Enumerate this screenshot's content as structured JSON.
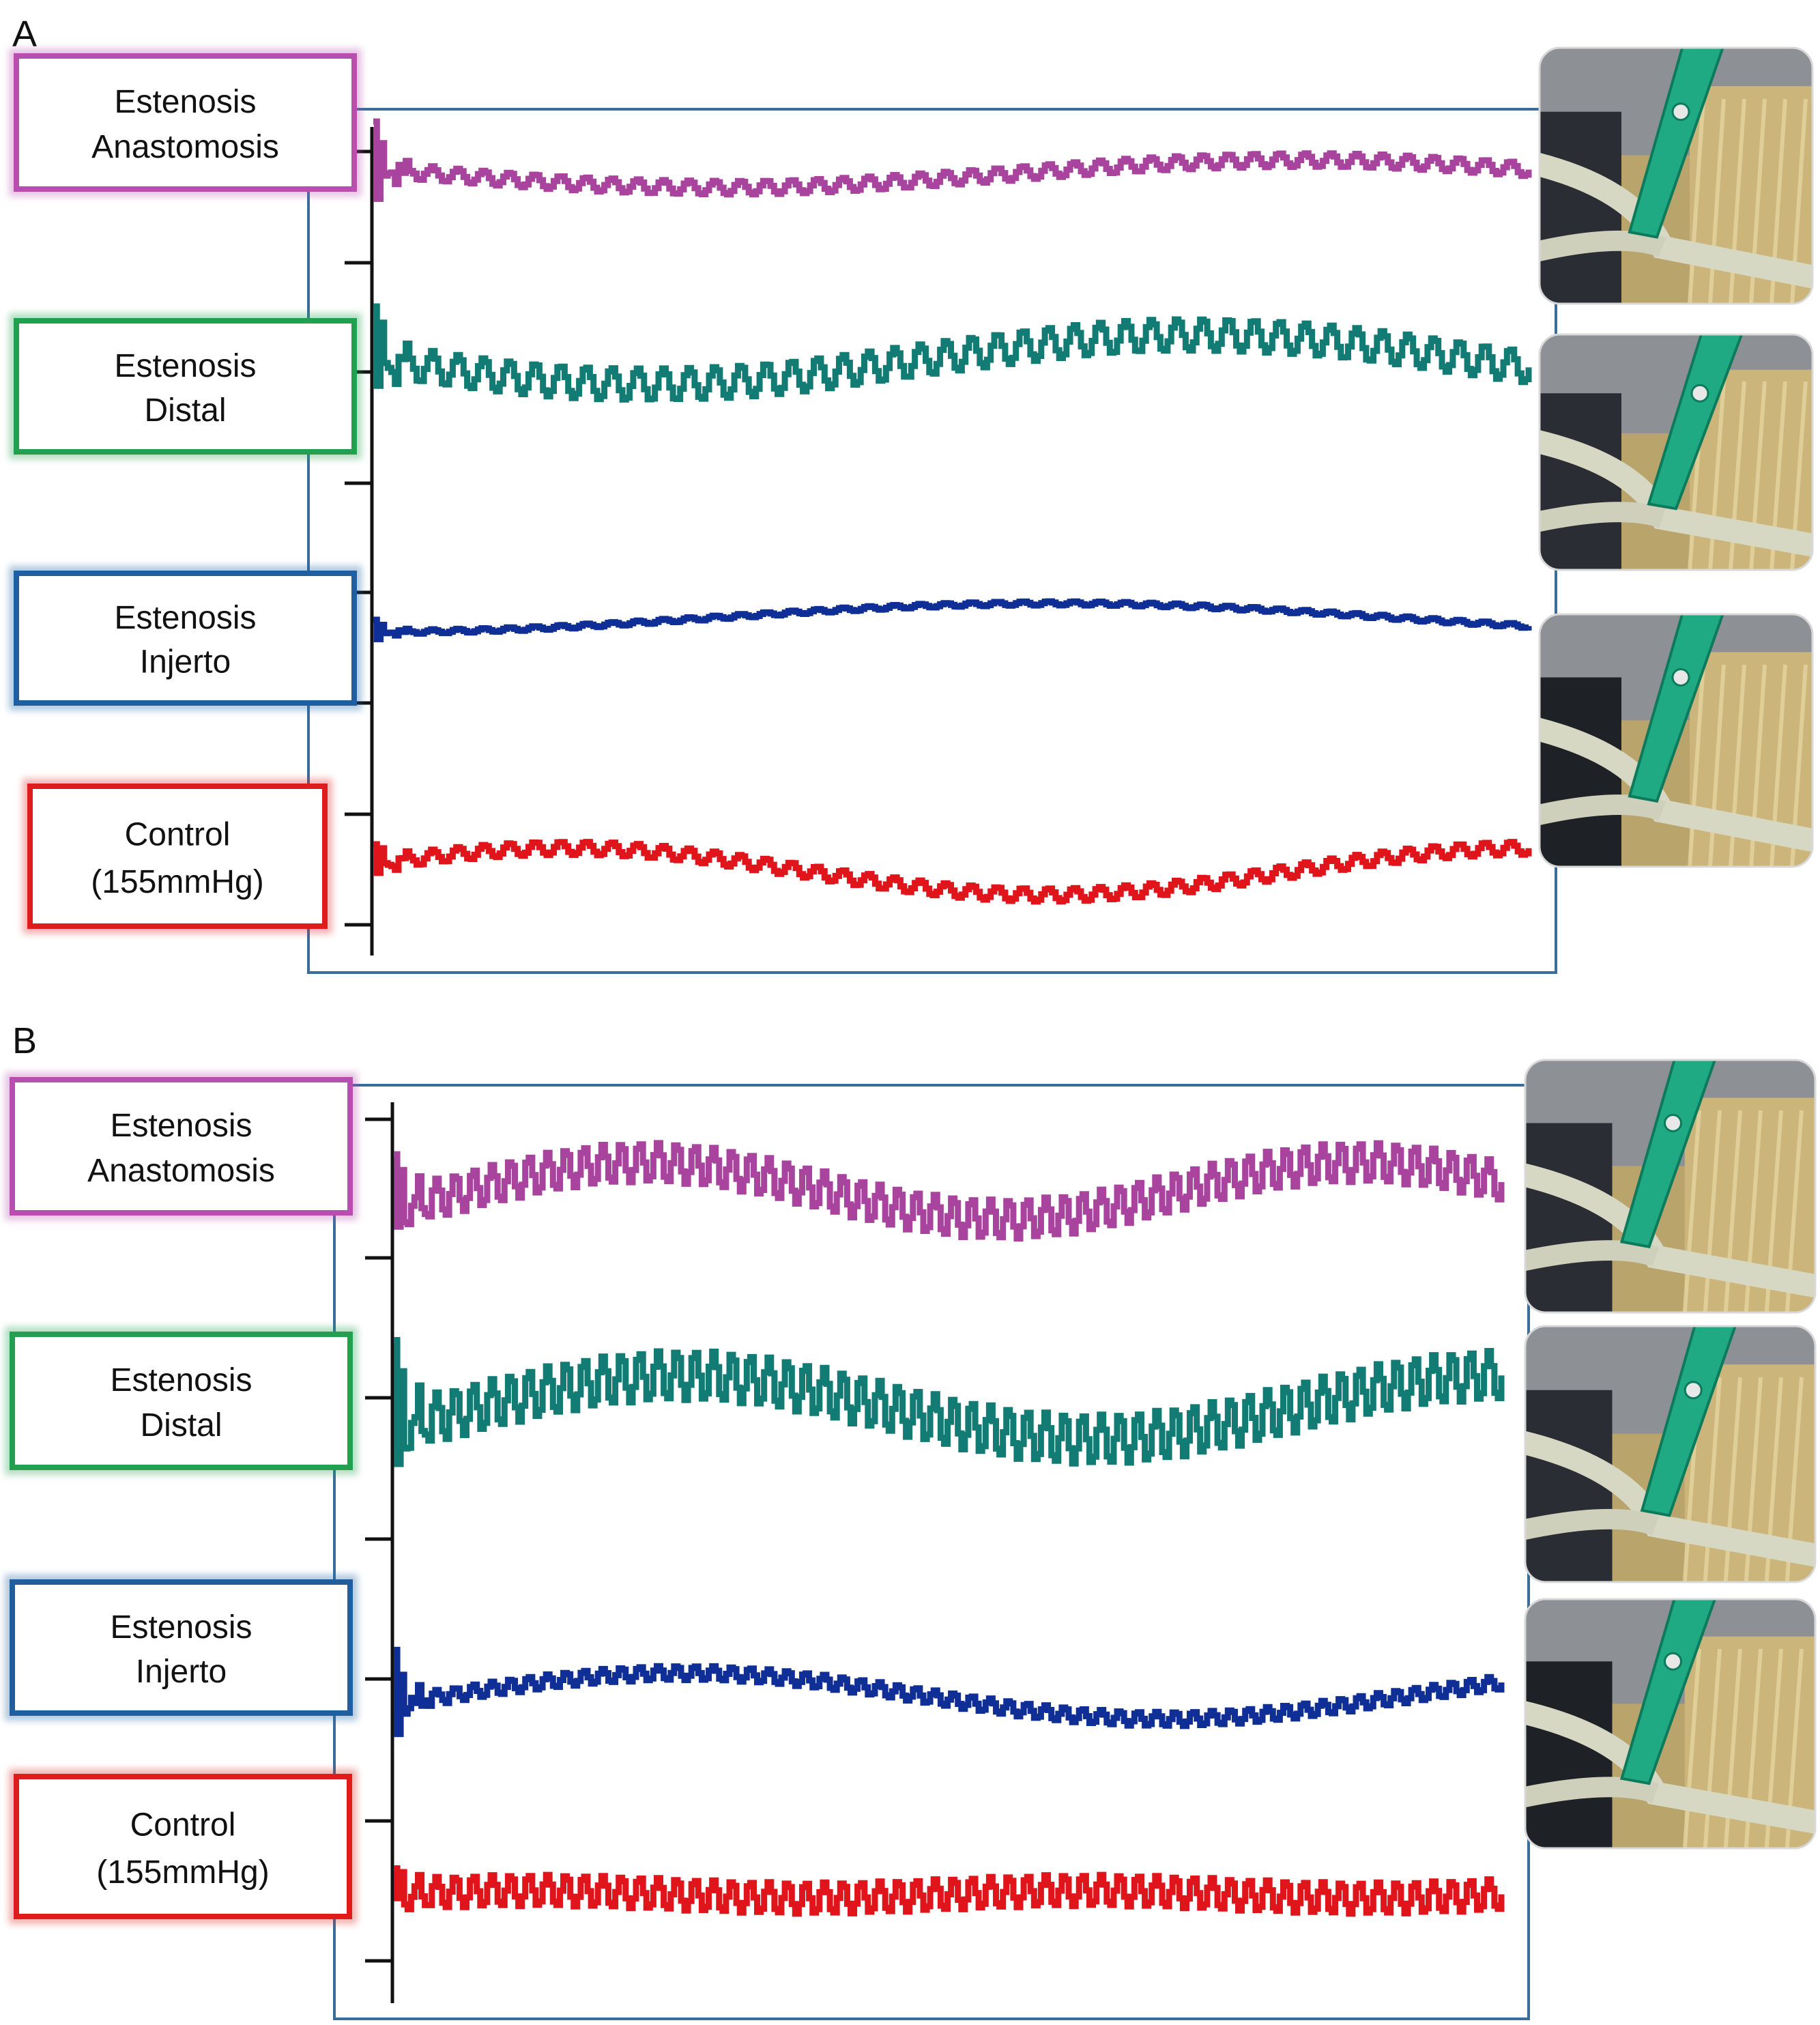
{
  "panels": [
    {
      "id": "A",
      "label": "A",
      "photos": [
        "clamp-photo-anastomosis",
        "clamp-photo-distal",
        "clamp-photo-graft"
      ],
      "traces": [
        {
          "name": "Estenosis Anastomosis",
          "lines": [
            "Estenosis",
            "Anastomosis"
          ],
          "color": "#a8449e",
          "frame": "#b84fb0"
        },
        {
          "name": "Estenosis Distal",
          "lines": [
            "Estenosis",
            "Distal"
          ],
          "color": "#127b74",
          "frame": "#22a050"
        },
        {
          "name": "Estenosis Injerto",
          "lines": [
            "Estenosis",
            "Injerto"
          ],
          "color": "#0f2f96",
          "frame": "#1f5fa0"
        },
        {
          "name": "Control (155mmHg)",
          "lines": [
            "Control",
            "(155mmHg)"
          ],
          "color": "#e0141b",
          "frame": "#e01b1b"
        }
      ]
    },
    {
      "id": "B",
      "label": "B",
      "photos": [
        "clamp-photo-anastomosis",
        "clamp-photo-distal",
        "clamp-photo-graft"
      ],
      "traces": [
        {
          "name": "Estenosis Anastomosis",
          "lines": [
            "Estenosis",
            "Anastomosis"
          ],
          "color": "#a8449e",
          "frame": "#b84fb0"
        },
        {
          "name": "Estenosis Distal",
          "lines": [
            "Estenosis",
            "Distal"
          ],
          "color": "#127b74",
          "frame": "#22a050"
        },
        {
          "name": "Estenosis Injerto",
          "lines": [
            "Estenosis",
            "Injerto"
          ],
          "color": "#0f2f96",
          "frame": "#1f5fa0"
        },
        {
          "name": "Control (155mmHg)",
          "lines": [
            "Control",
            "(155mmHg)"
          ],
          "color": "#e0141b",
          "frame": "#e01b1b"
        }
      ]
    }
  ],
  "chart_data": [
    {
      "type": "line",
      "panel": "A",
      "x_unit": "relative time (0–1)",
      "y_unit": "relative pressure (unlabelled)",
      "grid": false,
      "series": [
        {
          "name": "Estenosis Anastomosis",
          "baseline": 0.62,
          "wave_amp": 0.1,
          "wave_periods": 1.0,
          "wave_phase": 0.55,
          "osc_cycles": 45,
          "osc_amp": 0.05,
          "transient_amp": 0.35
        },
        {
          "name": "Estenosis Distal",
          "baseline": 0.55,
          "wave_amp": 0.14,
          "wave_periods": 1.05,
          "wave_phase": 0.5,
          "osc_cycles": 45,
          "osc_amp": 0.09,
          "transient_amp": 0.3
        },
        {
          "name": "Estenosis Injerto",
          "baseline": 0.5,
          "wave_amp": 0.14,
          "wave_periods": 0.85,
          "wave_phase": 0.25,
          "osc_cycles": 45,
          "osc_amp": 0.02,
          "transient_amp": 0.12
        },
        {
          "name": "Control (155mmHg)",
          "baseline": 0.4,
          "wave_amp": 0.14,
          "wave_periods": 1.2,
          "wave_phase": -0.05,
          "osc_cycles": 45,
          "osc_amp": 0.04,
          "transient_amp": 0.12
        }
      ]
    },
    {
      "type": "line",
      "panel": "B",
      "x_unit": "relative time (0–1)",
      "y_unit": "relative pressure (unlabelled)",
      "grid": false,
      "series": [
        {
          "name": "Estenosis Anastomosis",
          "baseline": 0.52,
          "wave_amp": 0.16,
          "wave_periods": 1.55,
          "wave_phase": 0.1,
          "osc_cycles": 60,
          "osc_amp": 0.11,
          "transient_amp": 0.3
        },
        {
          "name": "Estenosis Distal",
          "baseline": 0.55,
          "wave_amp": 0.13,
          "wave_periods": 1.35,
          "wave_phase": 0.1,
          "osc_cycles": 60,
          "osc_amp": 0.1,
          "transient_amp": 0.35
        },
        {
          "name": "Estenosis Injerto",
          "baseline": 0.5,
          "wave_amp": 0.13,
          "wave_periods": 1.15,
          "wave_phase": 0.05,
          "osc_cycles": 60,
          "osc_amp": 0.04,
          "transient_amp": 0.3
        },
        {
          "name": "Control (155mmHg)",
          "baseline": 0.55,
          "wave_amp": 0.03,
          "wave_periods": 2.0,
          "wave_phase": 0.0,
          "osc_cycles": 60,
          "osc_amp": 0.12,
          "transient_amp": 0.2
        }
      ]
    }
  ]
}
